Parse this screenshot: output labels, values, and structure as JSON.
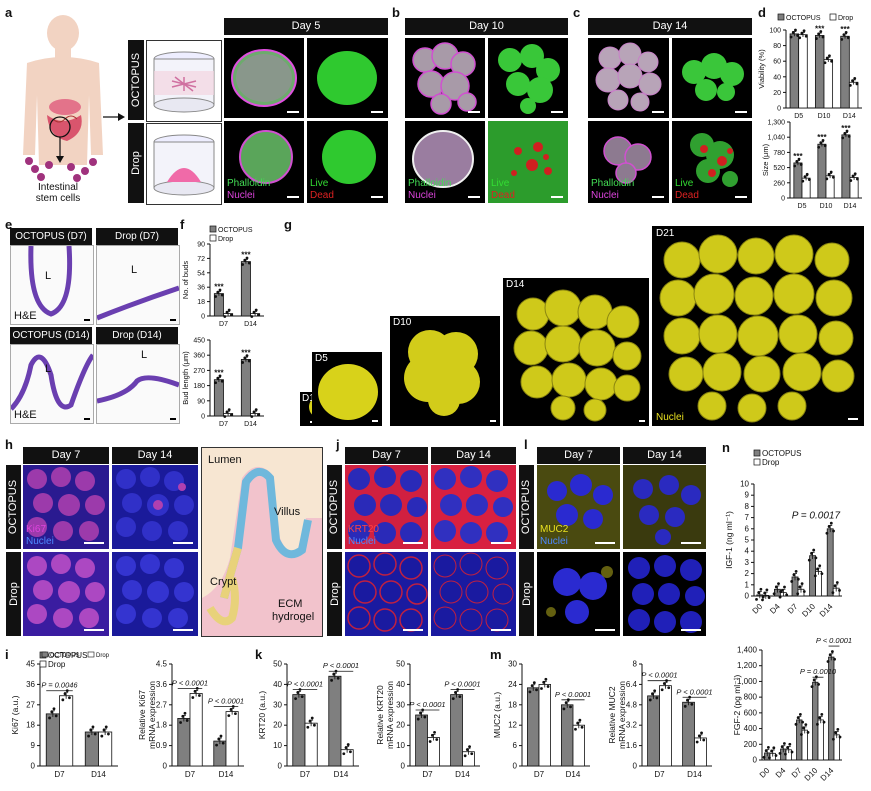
{
  "panels": {
    "a": {
      "letter": "a",
      "col_header": "Day 5",
      "row_octopus": "OCTOPUS",
      "row_drop": "Drop",
      "stem_label_1": "Intestinal",
      "stem_label_2": "stem cells",
      "stain_1a": "Phalloidin",
      "stain_1b": "Nuclei",
      "stain_2a": "Live",
      "stain_2b": "Dead"
    },
    "b": {
      "letter": "b",
      "col_header": "Day 10",
      "stain_1a": "Phalloidin",
      "stain_1b": "Nuclei",
      "stain_2a": "Live",
      "stain_2b": "Dead"
    },
    "c": {
      "letter": "c",
      "col_header": "Day 14",
      "stain_1a": "Phalloidin",
      "stain_1b": "Nuclei",
      "stain_2a": "Live",
      "stain_2b": "Dead"
    },
    "d": {
      "letter": "d"
    },
    "e": {
      "letter": "e",
      "h1": "OCTOPUS (D7)",
      "h2": "Drop (D7)",
      "h3": "OCTOPUS (D14)",
      "h4": "Drop (D14)",
      "lumen": "L",
      "he": "H&E"
    },
    "f": {
      "letter": "f"
    },
    "g": {
      "letter": "g",
      "days": [
        "D1",
        "D5",
        "D10",
        "D14",
        "D21"
      ],
      "nuclei": "Nuclei"
    },
    "h": {
      "letter": "h",
      "day7": "Day 7",
      "day14": "Day 14",
      "row_octopus": "OCTOPUS",
      "row_drop": "Drop",
      "stain_a": "Ki67",
      "stain_b": "Nuclei",
      "lumen": "Lumen",
      "villus": "Villus",
      "crypt": "Crypt",
      "ecm1": "ECM",
      "ecm2": "hydrogel"
    },
    "j": {
      "letter": "j",
      "day7": "Day 7",
      "day14": "Day 14",
      "row_octopus": "OCTOPUS",
      "row_drop": "Drop",
      "stain_a": "KRT20",
      "stain_b": "Nuclei"
    },
    "l": {
      "letter": "l",
      "day7": "Day 7",
      "day14": "Day 14",
      "row_octopus": "OCTOPUS",
      "row_drop": "Drop",
      "stain_a": "MUC2",
      "stain_b": "Nuclei"
    },
    "n": {
      "letter": "n"
    },
    "i": {
      "letter": "i"
    },
    "k": {
      "letter": "k"
    },
    "m": {
      "letter": "m"
    }
  },
  "legend": {
    "octopus": "OCTOPUS",
    "drop": "Drop"
  },
  "colors": {
    "octopus": "#7f7f7f",
    "drop": "#ffffff",
    "phalloidin": "#44dd55",
    "nuclei": "#cc44cc",
    "live": "#33dd33",
    "dead": "#dd2222",
    "yellow": "#e8e020"
  },
  "chart_data": [
    {
      "id": "d-viability",
      "type": "bar",
      "ylabel": "Viability (%)",
      "categories": [
        "D5",
        "D10",
        "D14"
      ],
      "yticks": [
        0,
        20,
        40,
        60,
        80,
        100
      ],
      "ylim": [
        0,
        100
      ],
      "series": [
        {
          "name": "OCTOPUS",
          "values": [
            95,
            93,
            92
          ]
        },
        {
          "name": "Drop",
          "values": [
            94,
            62,
            33
          ]
        }
      ],
      "stars": [
        "",
        "***",
        "***"
      ]
    },
    {
      "id": "d-size",
      "type": "bar",
      "ylabel": "Size (μm)",
      "categories": [
        "D5",
        "D10",
        "D14"
      ],
      "yticks": [
        0,
        260,
        520,
        780,
        1040,
        1300
      ],
      "yticklabels": [
        "0",
        "260",
        "520",
        "780",
        "1,040",
        "1,300"
      ],
      "ylim": [
        0,
        1300
      ],
      "series": [
        {
          "name": "OCTOPUS",
          "values": [
            600,
            920,
            1080
          ]
        },
        {
          "name": "Drop",
          "values": [
            340,
            380,
            350
          ]
        }
      ],
      "stars": [
        "***",
        "***",
        "***"
      ]
    },
    {
      "id": "f-buds",
      "type": "bar",
      "ylabel": "No. of buds",
      "categories": [
        "D7",
        "D14"
      ],
      "yticks": [
        0,
        18,
        36,
        54,
        72,
        90
      ],
      "ylim": [
        0,
        90
      ],
      "series": [
        {
          "name": "OCTOPUS",
          "values": [
            28,
            68
          ]
        },
        {
          "name": "Drop",
          "values": [
            3,
            3
          ]
        }
      ],
      "stars": [
        "***",
        "***"
      ]
    },
    {
      "id": "f-budlength",
      "type": "bar",
      "ylabel": "Bud length (μm)",
      "categories": [
        "D7",
        "D14"
      ],
      "yticks": [
        0,
        90,
        180,
        270,
        360,
        450
      ],
      "ylim": [
        0,
        450
      ],
      "series": [
        {
          "name": "OCTOPUS",
          "values": [
            215,
            335
          ]
        },
        {
          "name": "Drop",
          "values": [
            15,
            15
          ]
        }
      ],
      "stars": [
        "***",
        "***"
      ]
    },
    {
      "id": "n-igf1",
      "type": "bar",
      "ylabel": "IGF-1 (ng ml⁻¹)",
      "categories": [
        "D0",
        "D4",
        "D7",
        "D10",
        "D14"
      ],
      "yticks": [
        0,
        1,
        2,
        3,
        4,
        5,
        6,
        7,
        8,
        9,
        10
      ],
      "ylim": [
        0,
        10
      ],
      "series": [
        {
          "name": "OCTOPUS",
          "values": [
            0.1,
            0.6,
            1.7,
            3.6,
            6.0
          ]
        },
        {
          "name": "Drop",
          "values": [
            0.05,
            0.3,
            0.6,
            2.2,
            0.7
          ]
        }
      ],
      "annotation": "P = 0.0017"
    },
    {
      "id": "n-fgf2",
      "type": "bar",
      "ylabel": "FGF-2 (pg ml⁻¹)",
      "categories": [
        "D0",
        "D4",
        "D7",
        "D10",
        "D14"
      ],
      "yticks": [
        0,
        200,
        400,
        600,
        800,
        1000,
        1200,
        1400
      ],
      "yticklabels": [
        "0",
        "200",
        "400",
        "600",
        "800",
        "1,000",
        "1,200",
        "1,400"
      ],
      "ylim": [
        0,
        1400
      ],
      "series": [
        {
          "name": "OCTOPUS",
          "values": [
            90,
            140,
            510,
            990,
            1310
          ]
        },
        {
          "name": "Drop",
          "values": [
            85,
            130,
            380,
            510,
            320
          ]
        }
      ],
      "p_labels": [
        "P = 0.0010",
        "P < 0.0001"
      ]
    },
    {
      "id": "i-ki67",
      "type": "bar",
      "ylabel": "Ki67 (a.u.)",
      "categories": [
        "D7",
        "D14"
      ],
      "yticks": [
        0,
        9,
        18,
        27,
        36,
        45
      ],
      "ylim": [
        0,
        45
      ],
      "series": [
        {
          "name": "OCTOPUS",
          "values": [
            23,
            15
          ]
        },
        {
          "name": "Drop",
          "values": [
            31,
            15
          ]
        }
      ],
      "p_labels": [
        "P = 0.0046"
      ]
    },
    {
      "id": "i-ki67-mrna",
      "type": "bar",
      "ylabel": "Relative Ki67 mRNA expression",
      "categories": [
        "D7",
        "D14"
      ],
      "yticks": [
        0,
        0.9,
        1.8,
        2.7,
        3.6,
        4.5
      ],
      "ylim": [
        0,
        4.5
      ],
      "series": [
        {
          "name": "OCTOPUS",
          "values": [
            2.1,
            1.1
          ]
        },
        {
          "name": "Drop",
          "values": [
            3.2,
            2.4
          ]
        }
      ],
      "p_labels": [
        "P < 0.0001",
        "P < 0.0001"
      ]
    },
    {
      "id": "k-krt20",
      "type": "bar",
      "ylabel": "KRT20 (a.u.)",
      "categories": [
        "D7",
        "D14"
      ],
      "yticks": [
        0,
        10,
        20,
        30,
        40,
        50
      ],
      "ylim": [
        0,
        50
      ],
      "series": [
        {
          "name": "OCTOPUS",
          "values": [
            35,
            44
          ]
        },
        {
          "name": "Drop",
          "values": [
            21,
            8
          ]
        }
      ],
      "p_labels": [
        "P < 0.0001",
        "P < 0.0001"
      ]
    },
    {
      "id": "k-krt20-mrna",
      "type": "bar",
      "ylabel": "Relative KRT20 mRNA expression",
      "categories": [
        "D7",
        "D14"
      ],
      "yticks": [
        0,
        10,
        20,
        30,
        40,
        50
      ],
      "ylim": [
        0,
        50
      ],
      "series": [
        {
          "name": "OCTOPUS",
          "values": [
            25,
            35
          ]
        },
        {
          "name": "Drop",
          "values": [
            14,
            7
          ]
        }
      ],
      "p_labels": [
        "P < 0.0001",
        "P < 0.0001"
      ]
    },
    {
      "id": "m-muc2",
      "type": "bar",
      "ylabel": "MUC2 (a.u.)",
      "categories": [
        "D7",
        "D14"
      ],
      "yticks": [
        0,
        6,
        12,
        18,
        24,
        30
      ],
      "ylim": [
        0,
        30
      ],
      "series": [
        {
          "name": "OCTOPUS",
          "values": [
            23,
            18
          ]
        },
        {
          "name": "Drop",
          "values": [
            24,
            12
          ]
        }
      ],
      "p_labels": [
        "P < 0.0001"
      ]
    },
    {
      "id": "m-muc2-mrna",
      "type": "bar",
      "ylabel": "Relative MUC2 mRNA expression",
      "categories": [
        "D7",
        "D14"
      ],
      "yticks": [
        0,
        1.6,
        3.2,
        4.8,
        6.4,
        8.0
      ],
      "ylim": [
        0,
        8.0
      ],
      "series": [
        {
          "name": "OCTOPUS",
          "values": [
            5.5,
            5.0
          ]
        },
        {
          "name": "Drop",
          "values": [
            6.3,
            2.2
          ]
        }
      ],
      "p_labels": [
        "P < 0.0001",
        "P < 0.0001"
      ]
    }
  ]
}
